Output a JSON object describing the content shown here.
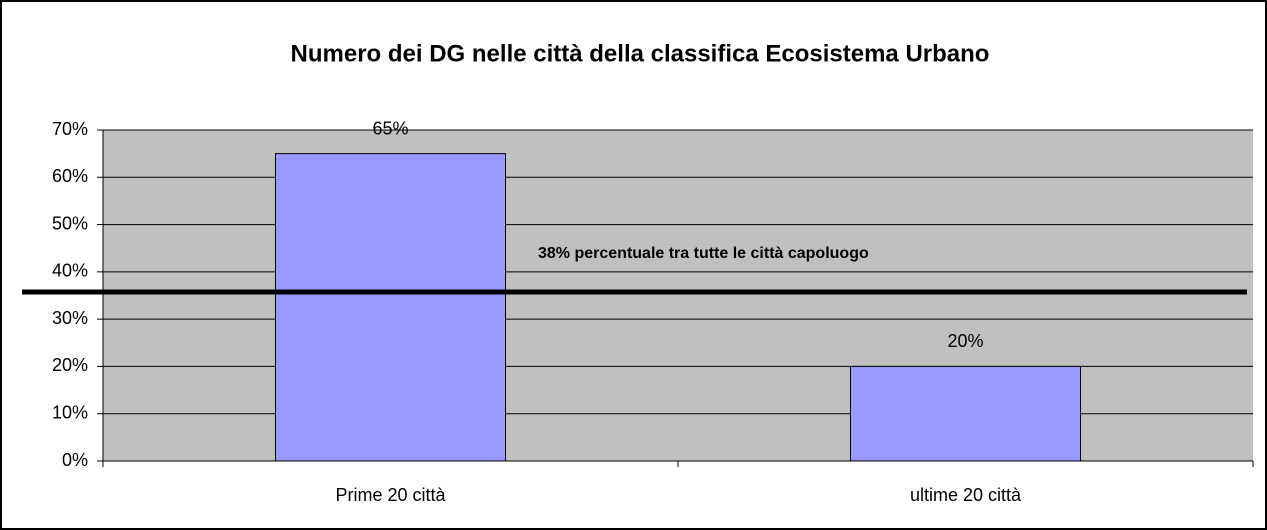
{
  "chart_data": {
    "type": "bar",
    "title": "Numero dei DG nelle città della classifica Ecosistema Urbano",
    "categories": [
      "Prime 20 città",
      "ultime 20 città"
    ],
    "values": [
      65,
      20
    ],
    "value_labels": [
      "65%",
      "20%"
    ],
    "color": "#9999ff",
    "ylim": [
      0,
      70
    ],
    "yticks": [
      {
        "value": 0,
        "label": "0%"
      },
      {
        "value": 10,
        "label": "10%"
      },
      {
        "value": 20,
        "label": "20%"
      },
      {
        "value": 30,
        "label": "30%"
      },
      {
        "value": 40,
        "label": "40%"
      },
      {
        "value": 50,
        "label": "50%"
      },
      {
        "value": 60,
        "label": "60%"
      },
      {
        "value": 70,
        "label": "70%"
      }
    ],
    "grid": true,
    "annotation": "38% percentuale tra tutte le città capoluogo"
  }
}
